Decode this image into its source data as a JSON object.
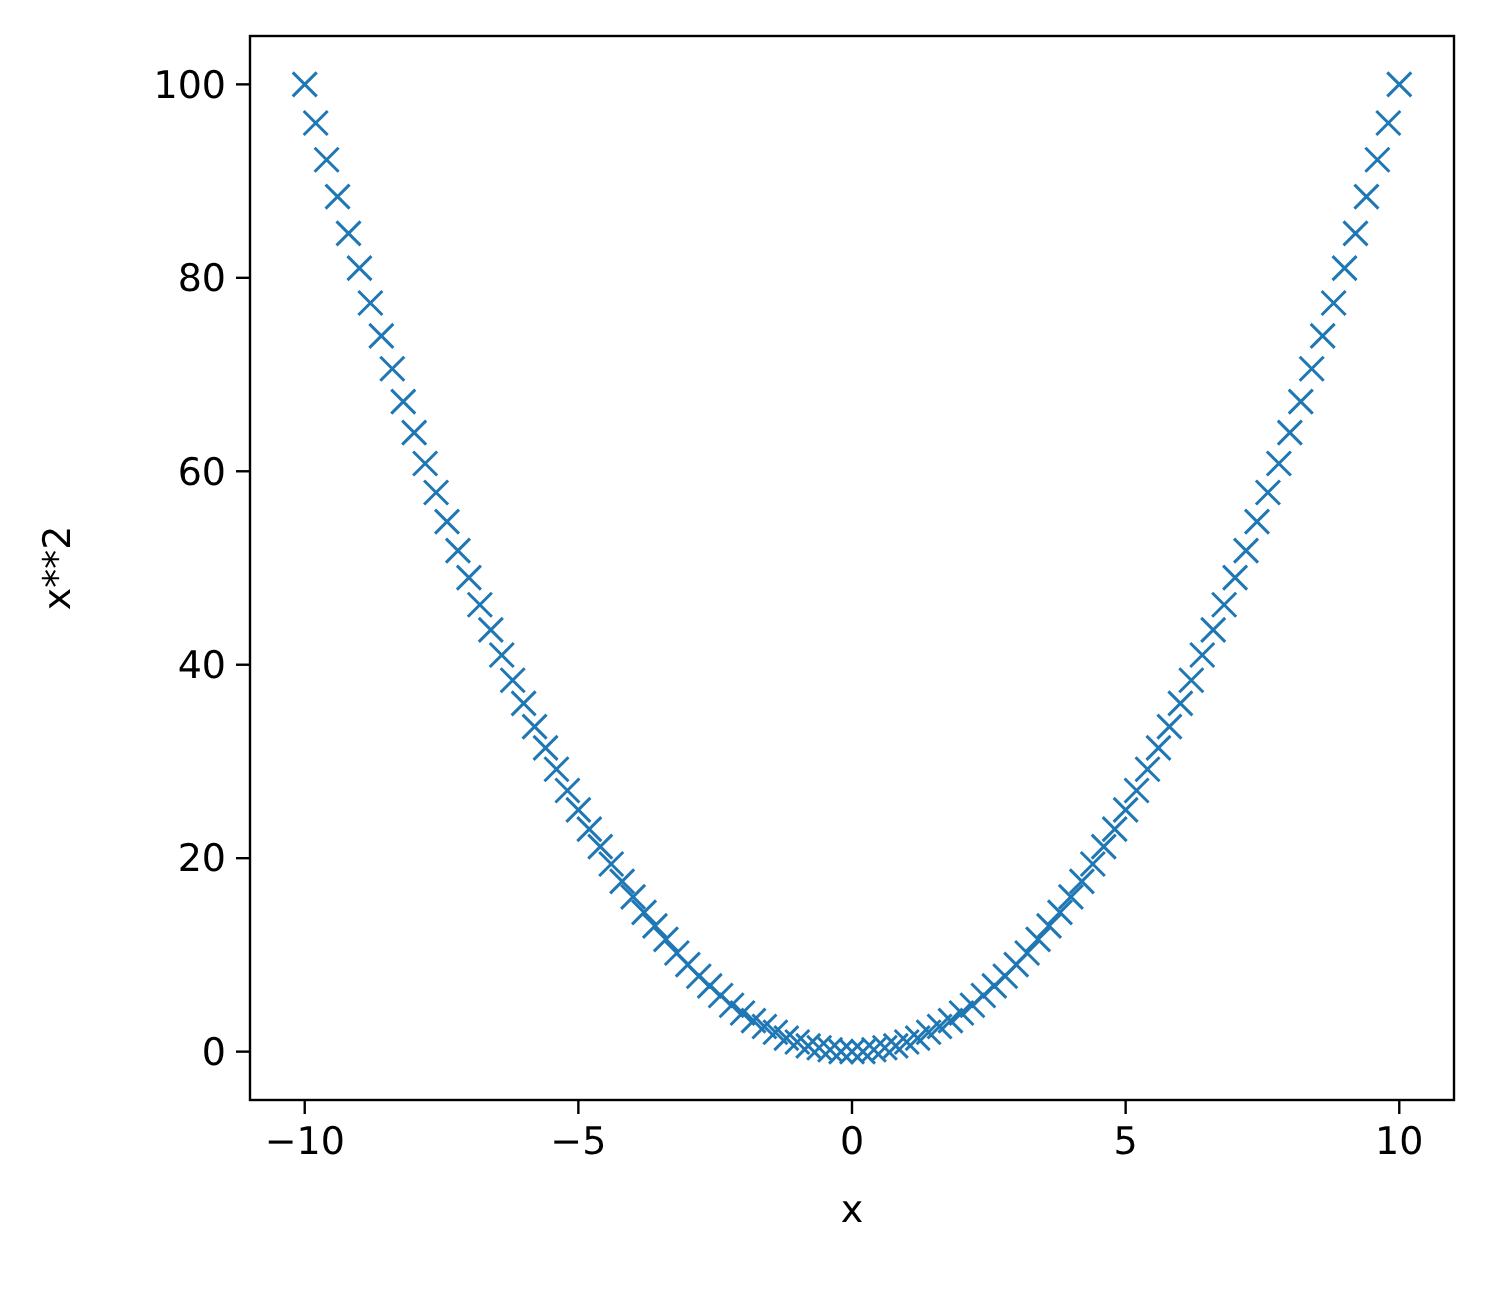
{
  "chart_data": {
    "type": "scatter",
    "xlabel": "x",
    "ylabel": "x**2",
    "marker": "cross",
    "xlim": [
      -11,
      11
    ],
    "ylim": [
      -5,
      105
    ],
    "xticks": [
      {
        "value": -10,
        "label": "−10"
      },
      {
        "value": -5,
        "label": "−5"
      },
      0,
      5,
      10
    ],
    "yticks": [
      0,
      20,
      40,
      60,
      80,
      100
    ],
    "series": [
      {
        "color": "#1f77b4",
        "x": [
          -10,
          -9.8,
          -9.6,
          -9.4,
          -9.2,
          -9,
          -8.8,
          -8.6,
          -8.4,
          -8.2,
          -8,
          -7.8,
          -7.6,
          -7.4,
          -7.2,
          -7,
          -6.8,
          -6.6,
          -6.4,
          -6.2,
          -6,
          -5.8,
          -5.6,
          -5.4,
          -5.2,
          -5,
          -4.8,
          -4.6,
          -4.4,
          -4.2,
          -4,
          -3.8,
          -3.6,
          -3.4,
          -3.2,
          -3,
          -2.8,
          -2.6,
          -2.4,
          -2.2,
          -2,
          -1.8,
          -1.6,
          -1.4,
          -1.2,
          -1,
          -0.8,
          -0.6,
          -0.4,
          -0.2,
          0,
          0.2,
          0.4,
          0.6,
          0.8,
          1,
          1.2,
          1.4,
          1.6,
          1.8,
          2,
          2.2,
          2.4,
          2.6,
          2.8,
          3,
          3.2,
          3.4,
          3.6,
          3.8,
          4,
          4.2,
          4.4,
          4.6,
          4.8,
          5,
          5.2,
          5.4,
          5.6,
          5.8,
          6,
          6.2,
          6.4,
          6.6,
          6.8,
          7,
          7.2,
          7.4,
          7.6,
          7.8,
          8,
          8.2,
          8.4,
          8.6,
          8.8,
          9,
          9.2,
          9.4,
          9.6,
          9.8,
          10
        ],
        "values": [
          100,
          96.0,
          92.2,
          88.4,
          84.6,
          81,
          77.4,
          74.0,
          70.6,
          67.2,
          64,
          60.8,
          57.8,
          54.8,
          51.8,
          49,
          46.2,
          43.6,
          41.0,
          38.4,
          36,
          33.6,
          31.4,
          29.2,
          27.0,
          25,
          23.0,
          21.2,
          19.4,
          17.6,
          16,
          14.4,
          13.0,
          11.6,
          10.2,
          9,
          7.8,
          6.8,
          5.8,
          4.8,
          4,
          3.2,
          2.6,
          2.0,
          1.4,
          1,
          0.6,
          0.4,
          0.2,
          0,
          0,
          0,
          0.2,
          0.4,
          0.6,
          1,
          1.4,
          2.0,
          2.6,
          3.2,
          4,
          4.8,
          5.8,
          6.8,
          7.8,
          9,
          10.2,
          11.6,
          13.0,
          14.4,
          16,
          17.6,
          19.4,
          21.2,
          23.0,
          25,
          27.0,
          29.2,
          31.4,
          33.6,
          36,
          38.4,
          41.0,
          43.6,
          46.2,
          49,
          51.8,
          54.8,
          57.8,
          60.8,
          64,
          67.2,
          70.6,
          74.0,
          77.4,
          81,
          84.6,
          88.4,
          92.2,
          96.0,
          100
        ]
      }
    ]
  }
}
